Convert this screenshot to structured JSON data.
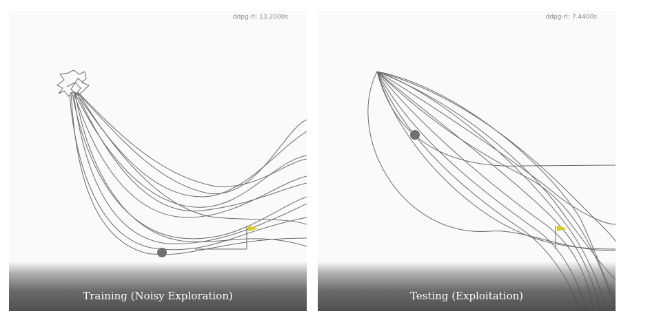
{
  "panels": [
    {
      "timer": "ddpg-rl: 13.2000s",
      "caption": "Training (Noisy Exploration)"
    },
    {
      "timer": "ddpg-rl: 7.4400s",
      "caption": "Testing (Exploitation)"
    }
  ],
  "colors": {
    "trajectory": "#6a6a6a",
    "agent": "#707070",
    "flag": "#d8cc1c",
    "background": "#fafafa"
  },
  "icons": {
    "goal": "goal-flag-icon",
    "agent": "agent-ball-icon"
  }
}
